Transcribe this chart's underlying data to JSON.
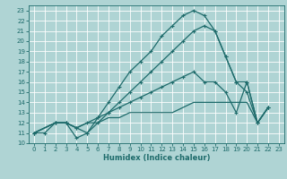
{
  "xlabel": "Humidex (Indice chaleur)",
  "background_color": "#afd4d4",
  "grid_color": "#ffffff",
  "line_color": "#1e6b6b",
  "xlim": [
    -0.5,
    23.5
  ],
  "ylim": [
    10,
    23.5
  ],
  "xticks": [
    0,
    1,
    2,
    3,
    4,
    5,
    6,
    7,
    8,
    9,
    10,
    11,
    12,
    13,
    14,
    15,
    16,
    17,
    18,
    19,
    20,
    21,
    22,
    23
  ],
  "yticks": [
    10,
    11,
    12,
    13,
    14,
    15,
    16,
    17,
    18,
    19,
    20,
    21,
    22,
    23
  ],
  "line1_x": [
    0,
    1,
    2,
    3,
    4,
    5,
    6,
    7,
    8,
    9,
    10,
    11,
    12,
    13,
    14,
    15,
    16,
    17,
    18,
    19,
    20,
    21,
    22
  ],
  "line1_y": [
    11,
    11,
    12,
    12,
    10.5,
    11,
    12.5,
    14,
    15.5,
    17,
    18,
    19,
    20.5,
    21.5,
    22.5,
    23,
    22.5,
    21,
    18.5,
    16,
    15,
    12,
    13.5
  ],
  "line2_x": [
    0,
    2,
    3,
    4,
    5,
    6,
    7,
    8,
    9,
    10,
    11,
    12,
    13,
    14,
    15,
    16,
    17,
    18,
    19,
    20,
    21,
    22
  ],
  "line2_y": [
    11,
    12,
    12,
    11.5,
    11,
    12,
    13,
    14,
    15,
    16,
    17,
    18,
    19,
    20,
    21,
    21.5,
    21,
    18.5,
    16,
    16,
    12,
    13.5
  ],
  "line3_x": [
    0,
    2,
    3,
    4,
    5,
    6,
    7,
    8,
    9,
    10,
    11,
    12,
    13,
    14,
    15,
    16,
    17,
    18,
    19,
    20,
    21,
    22
  ],
  "line3_y": [
    11,
    12,
    12,
    11.5,
    12,
    12.5,
    13,
    13.5,
    14,
    14.5,
    15,
    15.5,
    16,
    16.5,
    17,
    16,
    16,
    15,
    13,
    16,
    12,
    13.5
  ],
  "line4_x": [
    0,
    2,
    3,
    4,
    5,
    6,
    7,
    8,
    9,
    10,
    11,
    12,
    13,
    14,
    15,
    16,
    17,
    18,
    19,
    20,
    21,
    22
  ],
  "line4_y": [
    11,
    12,
    12,
    11.5,
    12,
    12,
    12.5,
    12.5,
    13,
    13,
    13,
    13,
    13,
    13.5,
    14,
    14,
    14,
    14,
    14,
    14,
    12,
    13.5
  ]
}
